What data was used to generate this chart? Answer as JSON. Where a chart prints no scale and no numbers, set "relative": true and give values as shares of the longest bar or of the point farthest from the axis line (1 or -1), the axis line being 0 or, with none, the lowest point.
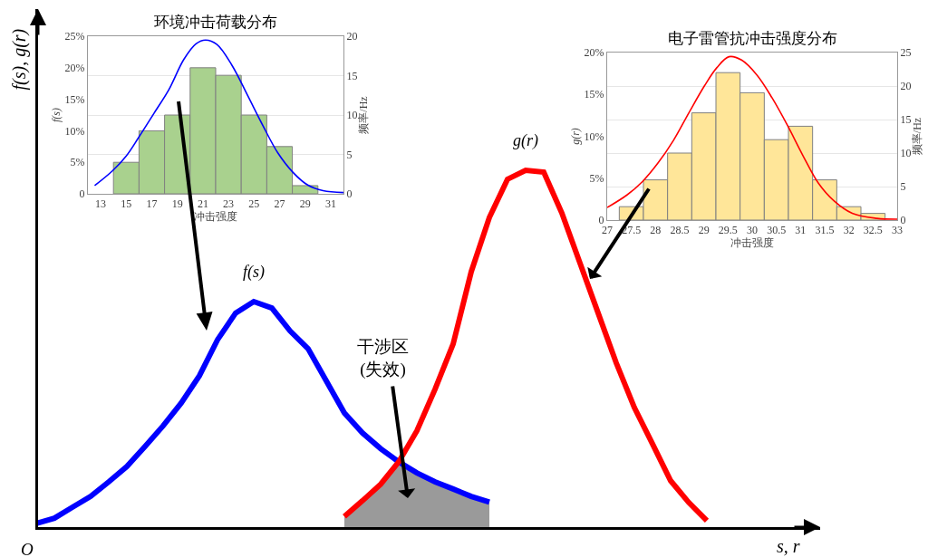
{
  "chart_data": [
    {
      "type": "histogram",
      "title": "环境冲击荷载分布",
      "xlabel": "冲击强度",
      "ylabel": "f(s)",
      "y2label": "频率/Hz",
      "bins": [
        14,
        16,
        18,
        20,
        22,
        24,
        26,
        28,
        30
      ],
      "values": [
        5,
        10,
        12.5,
        20,
        18.8,
        12.5,
        7.5,
        1.3
      ],
      "color": "#a9d18e",
      "series": [
        {
          "type": "line",
          "color": "#0000ff",
          "x": [
            12.53,
            13.95,
            15.0,
            15.96,
            17.15,
            18.33,
            19.5,
            20.46,
            21.2,
            22.1,
            23.3,
            24.5,
            25.7,
            26.86,
            28.05,
            29.2,
            30.4,
            32
          ],
          "values": [
            1.3,
            3.7,
            6.0,
            8.9,
            12.7,
            16.5,
            21.3,
            23.8,
            24.4,
            23.7,
            20.3,
            15.6,
            10.8,
            6.5,
            3.4,
            1.4,
            0.5,
            0.2
          ]
        }
      ],
      "xlim": [
        12,
        32
      ],
      "xticks": [
        13,
        15,
        17,
        19,
        21,
        23,
        25,
        27,
        29,
        31
      ],
      "ylim": [
        0,
        25
      ],
      "yticks": [
        0,
        {
          "value": 5,
          "label": "5%"
        },
        {
          "value": 10,
          "label": "10%"
        },
        {
          "value": 15,
          "label": "15%"
        },
        {
          "value": 20,
          "label": "20%"
        },
        {
          "value": 25,
          "label": "25%"
        }
      ],
      "y2lim": [
        0,
        20
      ],
      "y2ticks": [
        0,
        5,
        10,
        15,
        20
      ],
      "grid": "y"
    },
    {
      "type": "histogram",
      "title": "电子雷管抗冲击强度分布",
      "xlabel": "冲击强度",
      "ylabel": "g(r)",
      "y2label": "频率/Hz",
      "bins": [
        27.25,
        27.75,
        28.25,
        28.75,
        29.25,
        29.75,
        30.25,
        30.75,
        31.25,
        31.75,
        32.25,
        32.75
      ],
      "values": [
        1.6,
        4.8,
        8,
        12.8,
        17.6,
        15.2,
        9.6,
        11.2,
        4.8,
        1.6,
        0.8
      ],
      "color": "#ffe699",
      "series": [
        {
          "type": "line",
          "color": "#ff0000",
          "x": [
            27,
            27.41,
            27.73,
            28.05,
            28.37,
            28.69,
            29.01,
            29.27,
            29.52,
            29.78,
            30.1,
            30.41,
            30.73,
            31.05,
            31.37,
            31.69,
            32.07,
            32.58,
            33
          ],
          "values": [
            1.5,
            3.0,
            4.6,
            6.8,
            9.5,
            12.8,
            16.0,
            18.2,
            19.5,
            19.1,
            17.3,
            14.6,
            11.3,
            7.7,
            4.4,
            2.3,
            0.8,
            0.2,
            0.1
          ]
        }
      ],
      "xlim": [
        27,
        33
      ],
      "xticks": [
        27,
        27.5,
        28,
        28.5,
        29,
        29.5,
        30,
        30.5,
        31,
        31.5,
        32,
        32.5,
        33
      ],
      "ylim": [
        0,
        20
      ],
      "yticks": [
        0,
        {
          "value": 5,
          "label": "5%"
        },
        {
          "value": 10,
          "label": "10%"
        },
        {
          "value": 15,
          "label": "15%"
        },
        {
          "value": 20,
          "label": "20%"
        }
      ],
      "y2lim": [
        0,
        25
      ],
      "y2ticks": [
        0,
        5,
        10,
        15,
        20,
        25
      ],
      "grid": "y"
    },
    {
      "type": "line",
      "relative": true,
      "xlabel": "s, r",
      "ylabel": "f(s), g(r)",
      "annotations": [
        "O",
        "干涉区\n(失效)"
      ],
      "categories": [
        null,
        null,
        null,
        null,
        null,
        null,
        null,
        null,
        null,
        null,
        null,
        null,
        null,
        null,
        null,
        null,
        null,
        null,
        null,
        null,
        null,
        null,
        null,
        null,
        null,
        null,
        null,
        null,
        null,
        null,
        null,
        null,
        null,
        null,
        null,
        null,
        null,
        null,
        null,
        null,
        null,
        null,
        null,
        null
      ],
      "series": [
        {
          "type": "area",
          "color": "#9a9a9a",
          "values": [
            null,
            null,
            null,
            null,
            null,
            null,
            null,
            null,
            null,
            null,
            null,
            null,
            null,
            null,
            null,
            null,
            null,
            0.03,
            0.074,
            0.12,
            0.183,
            0.152,
            0.127,
            0.107,
            0.086,
            0.07,
            null,
            null,
            null,
            null,
            null,
            null,
            null,
            null,
            null,
            null,
            null,
            null,
            null,
            null,
            null,
            null,
            null,
            null
          ]
        },
        {
          "name": "f(s)",
          "color": "#0000ff",
          "values": [
            0.01,
            0.025,
            0.056,
            0.086,
            0.127,
            0.17,
            0.226,
            0.284,
            0.348,
            0.424,
            0.525,
            0.6,
            0.632,
            0.614,
            0.55,
            0.5,
            0.41,
            0.32,
            0.264,
            0.22,
            0.183,
            0.152,
            0.127,
            0.107,
            0.086,
            0.07,
            null,
            null,
            null,
            null,
            null,
            null,
            null,
            null,
            null,
            null,
            null,
            null,
            null,
            null,
            null,
            null,
            null,
            null
          ]
        },
        {
          "name": "g(r)",
          "color": "#ff0000",
          "values": [
            null,
            null,
            null,
            null,
            null,
            null,
            null,
            null,
            null,
            null,
            null,
            null,
            null,
            null,
            null,
            null,
            null,
            0.03,
            0.074,
            0.12,
            0.183,
            0.27,
            0.386,
            0.513,
            0.716,
            0.868,
            0.975,
            1.0,
            0.995,
            0.88,
            0.74,
            0.6,
            0.46,
            0.335,
            0.233,
            0.13,
            0.069,
            0.018,
            null,
            null,
            null,
            null,
            null,
            null
          ]
        }
      ]
    }
  ]
}
